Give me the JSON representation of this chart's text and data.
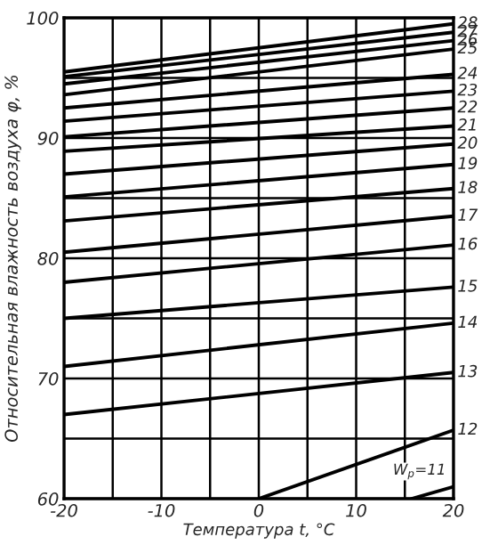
{
  "chart_data": {
    "type": "line",
    "xlabel": "Температура t, °C",
    "ylabel": "Относительная влажность воздуха φ, %",
    "xlim": [
      -20,
      20
    ],
    "ylim": [
      60,
      100
    ],
    "xticks": [
      -20,
      {
        "value": -15,
        "label": null
      },
      -10,
      {
        "value": -5,
        "label": null
      },
      0,
      {
        "value": 5,
        "label": null
      },
      10,
      {
        "value": 15,
        "label": null
      },
      20
    ],
    "yticks": [
      60,
      {
        "value": 65,
        "label": null
      },
      70,
      {
        "value": 75,
        "label": null
      },
      80,
      {
        "value": 85,
        "label": null
      },
      90,
      {
        "value": 95,
        "label": null
      },
      100
    ],
    "grid": true,
    "legend": false,
    "marker": "none",
    "line_style": "solid",
    "annotations": [
      {
        "text": "W$_{p}$=11",
        "x": 20,
        "y": 61.0
      }
    ],
    "series": [
      {
        "name": "28",
        "color": "#000000",
        "x": [
          -20,
          20
        ],
        "values": [
          95.5,
          99.5
        ]
      },
      {
        "name": "27",
        "color": "#000000",
        "x": [
          -20,
          20
        ],
        "values": [
          95.1,
          98.8
        ]
      },
      {
        "name": "26",
        "color": "#000000",
        "x": [
          -20,
          20
        ],
        "values": [
          94.5,
          98.1
        ]
      },
      {
        "name": "25",
        "color": "#000000",
        "x": [
          -20,
          20
        ],
        "values": [
          93.6,
          97.4
        ]
      },
      {
        "name": "24",
        "color": "#000000",
        "x": [
          -20,
          20
        ],
        "values": [
          92.5,
          95.3
        ]
      },
      {
        "name": "23",
        "color": "#000000",
        "x": [
          -20,
          20
        ],
        "values": [
          91.4,
          93.9
        ]
      },
      {
        "name": "22",
        "color": "#000000",
        "x": [
          -20,
          20
        ],
        "values": [
          90.1,
          92.5
        ]
      },
      {
        "name": "21",
        "color": "#000000",
        "x": [
          -20,
          20
        ],
        "values": [
          88.9,
          91.0
        ]
      },
      {
        "name": "20",
        "color": "#000000",
        "x": [
          -20,
          20
        ],
        "values": [
          87.0,
          89.5
        ]
      },
      {
        "name": "19",
        "color": "#000000",
        "x": [
          -20,
          20
        ],
        "values": [
          85.1,
          87.8
        ]
      },
      {
        "name": "18",
        "color": "#000000",
        "x": [
          -20,
          20
        ],
        "values": [
          83.1,
          85.8
        ]
      },
      {
        "name": "17",
        "color": "#000000",
        "x": [
          -20,
          20
        ],
        "values": [
          80.5,
          83.5
        ]
      },
      {
        "name": "16",
        "color": "#000000",
        "x": [
          -20,
          20
        ],
        "values": [
          78.0,
          81.1
        ]
      },
      {
        "name": "15",
        "color": "#000000",
        "x": [
          -20,
          20
        ],
        "values": [
          75.0,
          77.6
        ]
      },
      {
        "name": "14",
        "color": "#000000",
        "x": [
          -20,
          20
        ],
        "values": [
          71.0,
          74.6
        ]
      },
      {
        "name": "13",
        "color": "#000000",
        "x": [
          -20,
          20
        ],
        "values": [
          67.0,
          70.5
        ]
      },
      {
        "name": "12",
        "color": "#000000",
        "x": [
          0,
          20
        ],
        "values": [
          60.0,
          65.7
        ]
      },
      {
        "color": "#000000",
        "x": [
          15.7,
          20
        ],
        "values": [
          60.0,
          61.0
        ]
      }
    ]
  }
}
